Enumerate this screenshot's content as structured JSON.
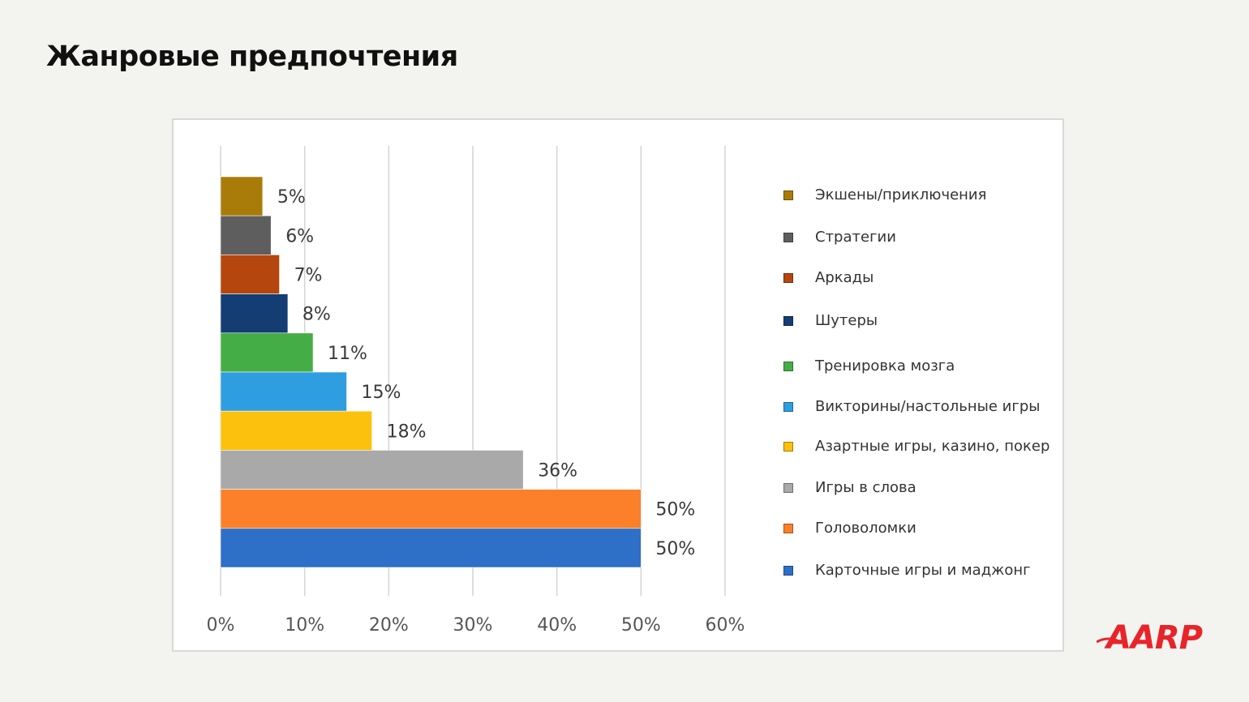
{
  "page": {
    "title": "Жанровые предпочтения"
  },
  "chart_data": {
    "type": "bar",
    "orientation": "horizontal",
    "title": "",
    "xlabel": "",
    "ylabel": "",
    "xlim": [
      0,
      60
    ],
    "x_ticks": [
      "0%",
      "10%",
      "20%",
      "30%",
      "40%",
      "50%",
      "60%"
    ],
    "grid": true,
    "legend_position": "right",
    "bars": [
      {
        "name": "Экшены/приключения",
        "value": 5,
        "label": "5%",
        "color": "#a97c0a"
      },
      {
        "name": "Стратегии",
        "value": 6,
        "label": "6%",
        "color": "#5e5e5e"
      },
      {
        "name": "Аркады",
        "value": 7,
        "label": "7%",
        "color": "#b5460e"
      },
      {
        "name": "Шутеры",
        "value": 8,
        "label": "8%",
        "color": "#143d74"
      },
      {
        "name": "Тренировка мозга",
        "value": 11,
        "label": "11%",
        "color": "#45ad45"
      },
      {
        "name": "Викторины/настольные игры",
        "value": 15,
        "label": "15%",
        "color": "#2e9ee0"
      },
      {
        "name": "Азартные игры, казино, покер",
        "value": 18,
        "label": "18%",
        "color": "#fcc10c"
      },
      {
        "name": "Игры в слова",
        "value": 36,
        "label": "36%",
        "color": "#a9a9a9"
      },
      {
        "name": "Головоломки",
        "value": 50,
        "label": "50%",
        "color": "#fb8029"
      },
      {
        "name": "Карточные игры и маджонг",
        "value": 50,
        "label": "50%",
        "color": "#2e6fc7"
      }
    ]
  },
  "logo": {
    "text": "AARP"
  }
}
